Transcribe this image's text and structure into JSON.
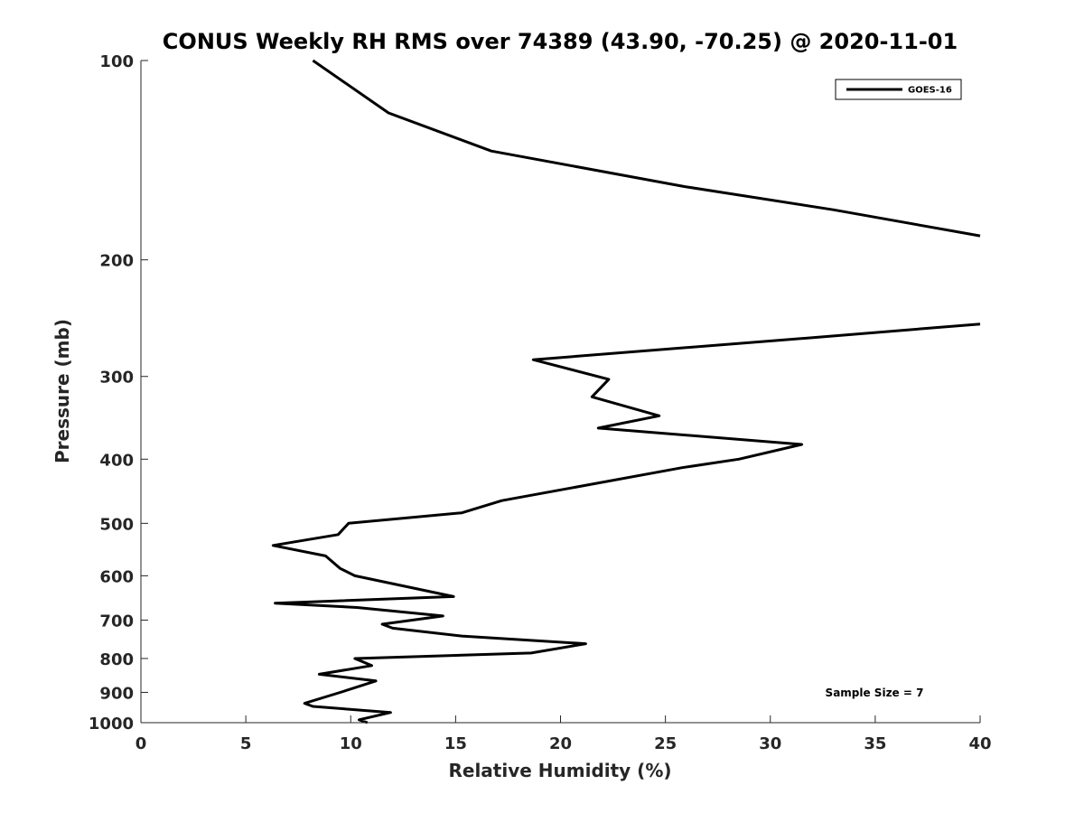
{
  "chart_data": {
    "type": "line",
    "title": "CONUS Weekly RH RMS over 74389 (43.90, -70.25) @ 2020-11-01",
    "xlabel": "Relative Humidity (%)",
    "ylabel": "Pressure (mb)",
    "xlim": [
      0,
      40
    ],
    "ylim": [
      100,
      1000
    ],
    "y_scale": "log",
    "y_reversed": true,
    "x_ticks": [
      0,
      5,
      10,
      15,
      20,
      25,
      30,
      35,
      40
    ],
    "x_tick_labels": [
      "0",
      "5",
      "10",
      "15",
      "20",
      "25",
      "30",
      "35",
      "40"
    ],
    "y_ticks": [
      100,
      200,
      300,
      400,
      500,
      600,
      700,
      800,
      900,
      1000
    ],
    "y_tick_labels": [
      "100",
      "200",
      "300",
      "400",
      "500",
      "600",
      "700",
      "800",
      "900",
      "1000"
    ],
    "grid": false,
    "legend_position": "top-right",
    "annotation": "Sample Size = 7",
    "series": [
      {
        "name": "GOES-16",
        "color": "#000000",
        "points": [
          [
            10.8,
            1000
          ],
          [
            10.4,
            990
          ],
          [
            11.9,
            965
          ],
          [
            8.2,
            945
          ],
          [
            7.8,
            935
          ],
          [
            9.5,
            900
          ],
          [
            11.2,
            865
          ],
          [
            8.5,
            845
          ],
          [
            11.0,
            820
          ],
          [
            10.2,
            800
          ],
          [
            18.6,
            785
          ],
          [
            21.2,
            760
          ],
          [
            15.3,
            740
          ],
          [
            12.0,
            720
          ],
          [
            11.5,
            710
          ],
          [
            14.4,
            690
          ],
          [
            10.3,
            670
          ],
          [
            6.4,
            660
          ],
          [
            14.9,
            645
          ],
          [
            10.2,
            600
          ],
          [
            9.5,
            585
          ],
          [
            8.8,
            560
          ],
          [
            6.3,
            540
          ],
          [
            9.4,
            520
          ],
          [
            9.9,
            500
          ],
          [
            15.3,
            482
          ],
          [
            17.2,
            462
          ],
          [
            25.8,
            412
          ],
          [
            28.5,
            400
          ],
          [
            31.5,
            380
          ],
          [
            21.8,
            359
          ],
          [
            24.7,
            344
          ],
          [
            21.5,
            322
          ],
          [
            22.3,
            303
          ],
          [
            18.7,
            283
          ],
          [
            32.1,
            262
          ],
          [
            40.0,
            250
          ]
        ]
      },
      {
        "name": "GOES-16",
        "color": "#000000",
        "points": [
          [
            40.0,
            184
          ],
          [
            33.0,
            168
          ],
          [
            25.9,
            155
          ],
          [
            16.7,
            137
          ],
          [
            11.8,
            120
          ],
          [
            8.2,
            100
          ]
        ]
      }
    ]
  }
}
